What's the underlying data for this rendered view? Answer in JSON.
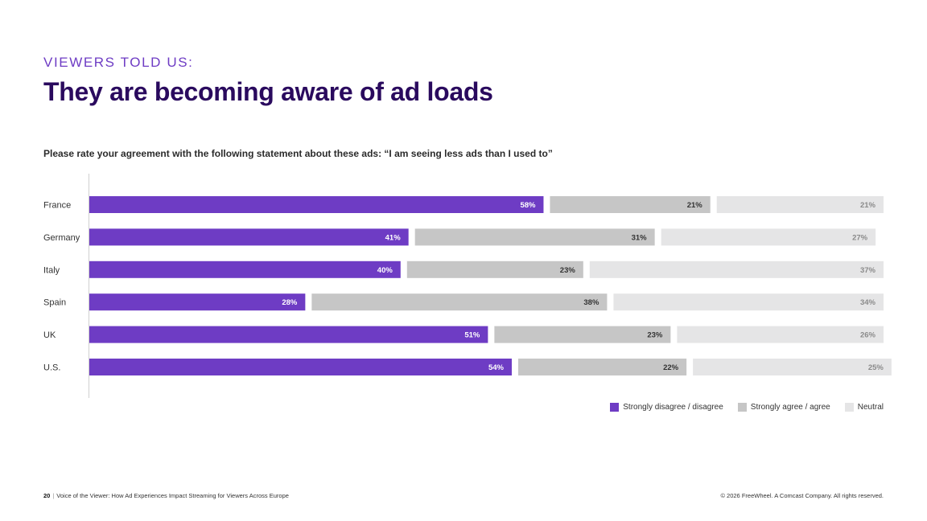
{
  "header": {
    "eyebrow": "VIEWERS TOLD US:",
    "title": "They are becoming aware of ad loads"
  },
  "colors": {
    "disagree": "#6e3cc4",
    "agree": "#c6c6c6",
    "neutral": "#e5e5e6",
    "disagree_label": "#ffffff",
    "agree_label": "#333333",
    "neutral_label": "#8a8a8a",
    "axis": "#d0d0d0"
  },
  "chart_data": {
    "type": "bar",
    "orientation": "horizontal",
    "stacked": true,
    "title": "Please rate your agreement with the following statement about these ads: “I am seeing less ads than I used to”",
    "xlabel": "",
    "ylabel": "",
    "categories": [
      "France",
      "Germany",
      "Italy",
      "Spain",
      "UK",
      "U.S."
    ],
    "series": [
      {
        "name": "Strongly disagree / disagree",
        "key": "disagree",
        "values": [
          58,
          41,
          40,
          28,
          51,
          54
        ]
      },
      {
        "name": "Strongly agree / agree",
        "key": "agree",
        "values": [
          21,
          31,
          23,
          38,
          23,
          22
        ]
      },
      {
        "name": "Neutral",
        "key": "neutral",
        "values": [
          21,
          27,
          37,
          34,
          26,
          25
        ]
      }
    ],
    "value_suffix": "%",
    "xlim": [
      0,
      100
    ],
    "grid": false,
    "legend_position": "bottom-right"
  },
  "legend": {
    "items": [
      {
        "label": "Strongly disagree / disagree",
        "key": "disagree"
      },
      {
        "label": "Strongly agree / agree",
        "key": "agree"
      },
      {
        "label": "Neutral",
        "key": "neutral"
      }
    ]
  },
  "footer": {
    "page_number": "20",
    "separator": "|",
    "report_title": "Voice of the Viewer: How Ad Experiences Impact Streaming for Viewers Across Europe",
    "copyright": "© 2026 FreeWheel. A Comcast Company. All rights reserved."
  }
}
